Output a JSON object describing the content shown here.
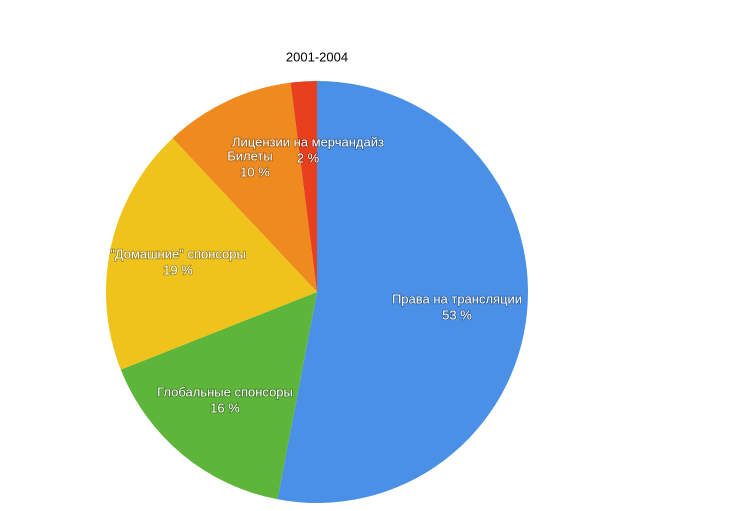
{
  "chart_data": {
    "type": "pie",
    "title": "2001-2004",
    "categories": [
      "Права на трансляции",
      "Глобальные спонсоры",
      "\"Домашние\" спонсоры",
      "Билеты",
      "Лицензии на мерчандайз"
    ],
    "values": [
      53,
      16,
      19,
      10,
      2
    ],
    "value_labels": [
      "53 %",
      "16 %",
      "19 %",
      "10 %",
      "2 %"
    ],
    "colors": [
      "#4a90e6",
      "#5db53a",
      "#efc31c",
      "#ef8a1e",
      "#e8401f"
    ]
  }
}
